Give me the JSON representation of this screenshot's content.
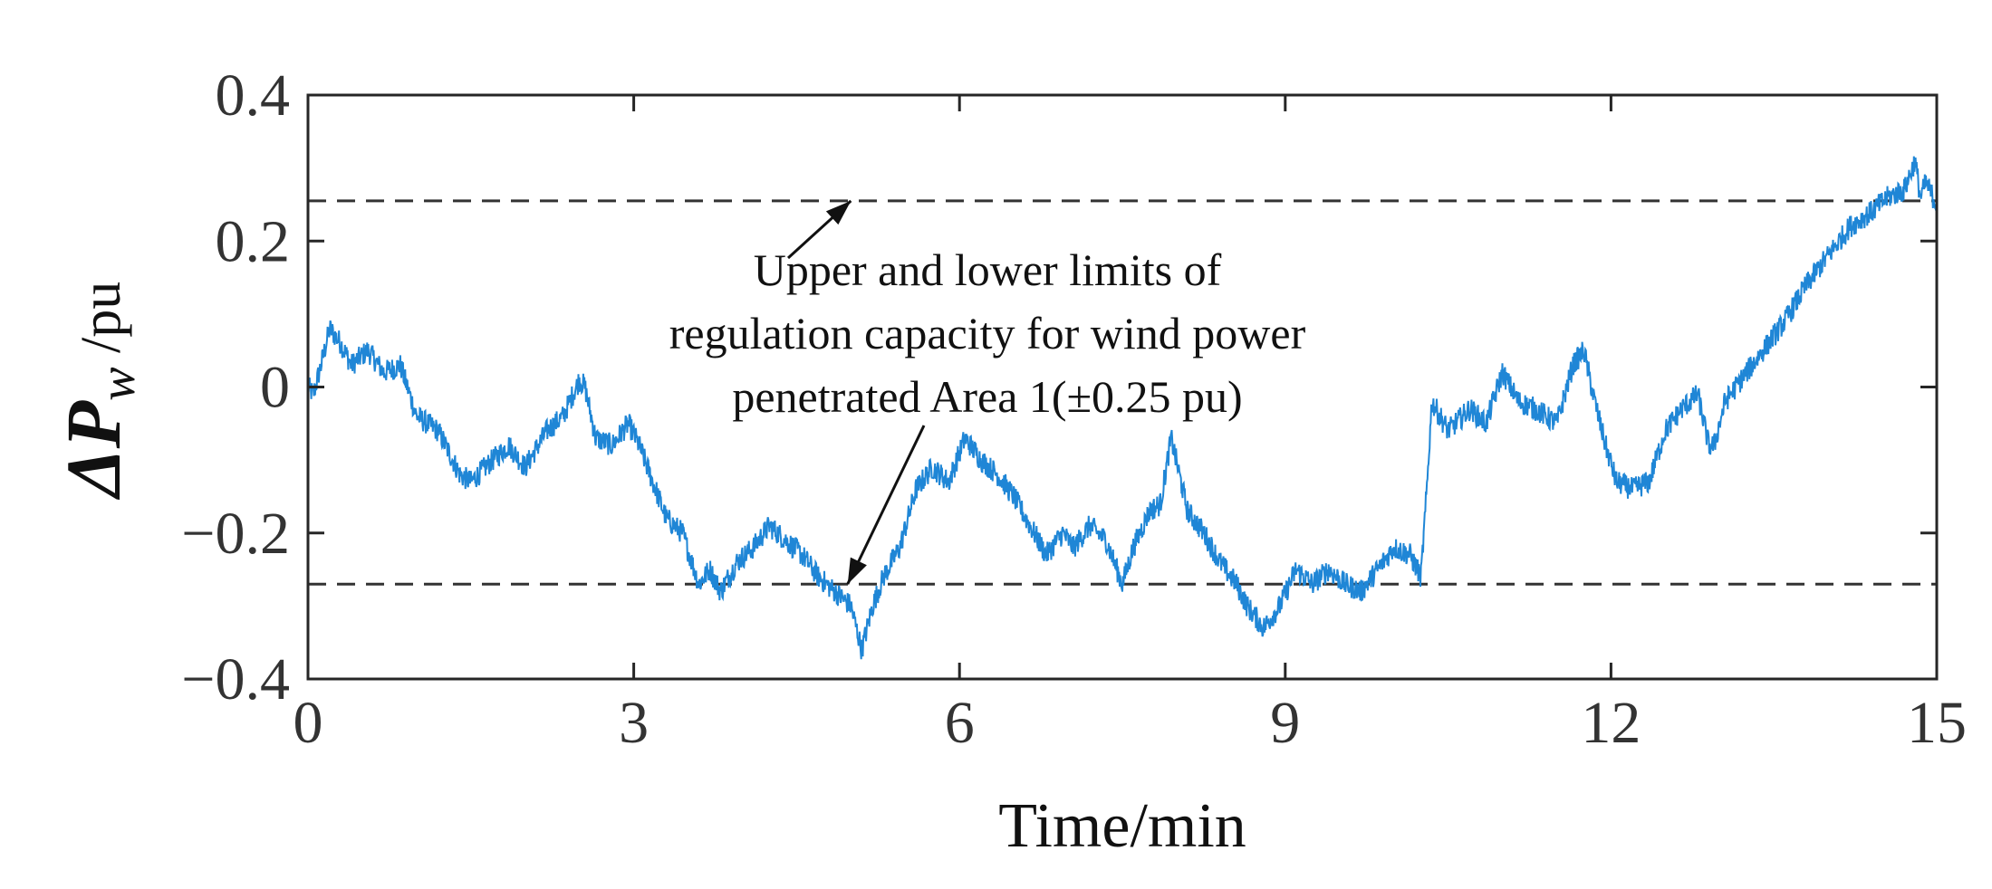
{
  "chart_data": {
    "type": "line",
    "title": "",
    "xlabel": "Time/min",
    "ylabel": {
      "symbol": "ΔP",
      "subscript": "w",
      "unit": " /pu"
    },
    "xlim": [
      0,
      15
    ],
    "ylim": [
      -0.4,
      0.4
    ],
    "xticks": [
      0,
      3,
      6,
      9,
      12,
      15
    ],
    "xtick_labels": [
      "0",
      "3",
      "6",
      "9",
      "12",
      "15"
    ],
    "yticks": [
      0.4,
      0.2,
      0,
      -0.2,
      -0.4
    ],
    "ytick_labels": [
      "0.4",
      "0.2",
      "0",
      "−0.2",
      "−0.4"
    ],
    "grid": false,
    "limits": {
      "upper": 0.255,
      "lower": -0.27,
      "style": "dashed",
      "color": "#333333"
    },
    "annotation": {
      "lines": [
        "Upper and lower limits of",
        "regulation capacity for wind power",
        "penetrated Area  1(±0.25 pu)"
      ],
      "arrow_targets": [
        {
          "x": 5.0,
          "y": 0.255
        },
        {
          "x": 4.97,
          "y": -0.27
        }
      ]
    },
    "series": [
      {
        "name": "ΔPw",
        "color": "#1f86d6",
        "x": [
          0,
          0.05,
          0.12,
          0.2,
          0.3,
          0.4,
          0.55,
          0.7,
          0.85,
          1.0,
          1.2,
          1.4,
          1.5,
          1.7,
          1.85,
          2.0,
          2.2,
          2.35,
          2.5,
          2.55,
          2.65,
          2.8,
          2.95,
          3.05,
          3.2,
          3.3,
          3.45,
          3.6,
          3.7,
          3.8,
          3.95,
          4.1,
          4.25,
          4.4,
          4.55,
          4.7,
          4.85,
          5.0,
          5.1,
          5.2,
          5.3,
          5.45,
          5.6,
          5.75,
          5.9,
          6.05,
          6.2,
          6.35,
          6.5,
          6.65,
          6.8,
          6.95,
          7.05,
          7.2,
          7.35,
          7.5,
          7.6,
          7.75,
          7.85,
          7.95,
          8.1,
          8.25,
          8.4,
          8.55,
          8.65,
          8.8,
          8.95,
          9.1,
          9.25,
          9.4,
          9.55,
          9.7,
          9.85,
          10.0,
          10.15,
          10.25,
          10.3,
          10.35,
          10.5,
          10.7,
          10.85,
          11.0,
          11.15,
          11.3,
          11.5,
          11.65,
          11.75,
          11.85,
          11.95,
          12.05,
          12.2,
          12.35,
          12.5,
          12.65,
          12.8,
          12.9,
          12.95,
          13.05,
          13.2,
          13.4,
          13.6,
          13.8,
          14.0,
          14.2,
          14.4,
          14.55,
          14.7,
          14.8,
          14.85,
          14.9,
          15.0
        ],
        "y": [
          0.0,
          -0.01,
          0.03,
          0.08,
          0.06,
          0.03,
          0.05,
          0.02,
          0.03,
          -0.04,
          -0.06,
          -0.12,
          -0.13,
          -0.1,
          -0.08,
          -0.11,
          -0.06,
          -0.04,
          0.01,
          0.0,
          -0.07,
          -0.08,
          -0.05,
          -0.08,
          -0.14,
          -0.18,
          -0.2,
          -0.27,
          -0.25,
          -0.28,
          -0.24,
          -0.22,
          -0.19,
          -0.21,
          -0.23,
          -0.26,
          -0.28,
          -0.3,
          -0.36,
          -0.3,
          -0.26,
          -0.22,
          -0.14,
          -0.11,
          -0.13,
          -0.07,
          -0.1,
          -0.12,
          -0.15,
          -0.19,
          -0.23,
          -0.2,
          -0.22,
          -0.19,
          -0.21,
          -0.27,
          -0.22,
          -0.17,
          -0.16,
          -0.07,
          -0.17,
          -0.2,
          -0.24,
          -0.27,
          -0.3,
          -0.33,
          -0.3,
          -0.25,
          -0.27,
          -0.25,
          -0.27,
          -0.28,
          -0.25,
          -0.22,
          -0.23,
          -0.26,
          -0.15,
          -0.02,
          -0.06,
          -0.03,
          -0.05,
          0.02,
          -0.02,
          -0.03,
          -0.05,
          0.03,
          0.05,
          -0.02,
          -0.08,
          -0.13,
          -0.14,
          -0.13,
          -0.06,
          -0.03,
          -0.01,
          -0.08,
          -0.08,
          -0.02,
          0.01,
          0.05,
          0.09,
          0.14,
          0.18,
          0.22,
          0.24,
          0.26,
          0.27,
          0.31,
          0.26,
          0.28,
          0.25
        ]
      }
    ]
  }
}
